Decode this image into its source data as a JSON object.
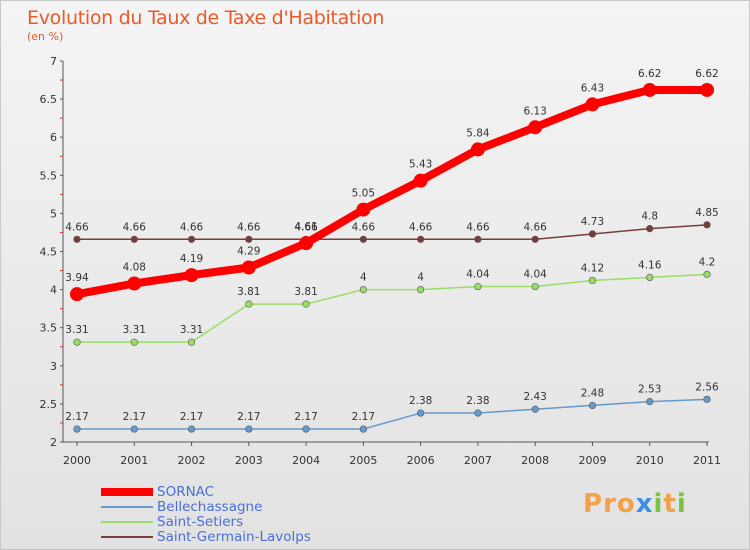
{
  "title": "Evolution du Taux de Taxe d'Habitation",
  "subtitle": "(en %)",
  "logo_text": "Proxiti",
  "chart_data": {
    "type": "line",
    "x": [
      "2000",
      "2001",
      "2002",
      "2003",
      "2004",
      "2005",
      "2006",
      "2007",
      "2008",
      "2009",
      "2010",
      "2011"
    ],
    "yticks": [
      "2",
      "2.5",
      "3",
      "3.5",
      "4",
      "4.5",
      "5",
      "5.5",
      "6",
      "6.5",
      "7"
    ],
    "ylim": [
      2,
      7
    ],
    "grid": false,
    "legend_position": "bottom-left",
    "series": [
      {
        "name": "Saint-Germain-Lavolps",
        "color": "#7a3b3b",
        "width": 1.5,
        "values": [
          4.66,
          4.66,
          4.66,
          4.66,
          4.66,
          4.66,
          4.66,
          4.66,
          4.66,
          4.73,
          4.8,
          4.85
        ],
        "labels": [
          "4.66",
          "4.66",
          "4.66",
          "4.66",
          "4.66",
          "4.66",
          "4.66",
          "4.66",
          "4.66",
          "4.73",
          "4.8",
          "4.85"
        ]
      },
      {
        "name": "Saint-Setiers",
        "color": "#99dd66",
        "width": 1.5,
        "values": [
          3.31,
          3.31,
          3.31,
          3.81,
          3.81,
          4,
          4,
          4.04,
          4.04,
          4.12,
          4.16,
          4.2
        ],
        "labels": [
          "3.31",
          "3.31",
          "3.31",
          "3.81",
          "3.81",
          "4",
          "4",
          "4.04",
          "4.04",
          "4.12",
          "4.16",
          "4.2"
        ]
      },
      {
        "name": "Bellechassagne",
        "color": "#6699cc",
        "width": 1.5,
        "values": [
          2.17,
          2.17,
          2.17,
          2.17,
          2.17,
          2.17,
          2.38,
          2.38,
          2.43,
          2.48,
          2.53,
          2.56
        ],
        "labels": [
          "2.17",
          "2.17",
          "2.17",
          "2.17",
          "2.17",
          "2.17",
          "2.38",
          "2.38",
          "2.43",
          "2.48",
          "2.53",
          "2.56"
        ]
      },
      {
        "name": "SORNAC",
        "color": "#ff0000",
        "width": 8,
        "values": [
          3.94,
          4.08,
          4.19,
          4.29,
          4.61,
          5.05,
          5.43,
          5.84,
          6.13,
          6.43,
          6.62,
          6.62
        ],
        "labels": [
          "3.94",
          "4.08",
          "4.19",
          "4.29",
          "4.61",
          "5.05",
          "5.43",
          "5.84",
          "6.13",
          "6.43",
          "6.62",
          "6.62"
        ]
      }
    ]
  },
  "legend": [
    {
      "label": "SORNAC",
      "color": "#ff0000",
      "thickness": 8
    },
    {
      "label": "Bellechassagne",
      "color": "#6699cc",
      "thickness": 2
    },
    {
      "label": "Saint-Setiers",
      "color": "#99dd66",
      "thickness": 2
    },
    {
      "label": "Saint-Germain-Lavolps",
      "color": "#7a3b3b",
      "thickness": 2
    }
  ]
}
